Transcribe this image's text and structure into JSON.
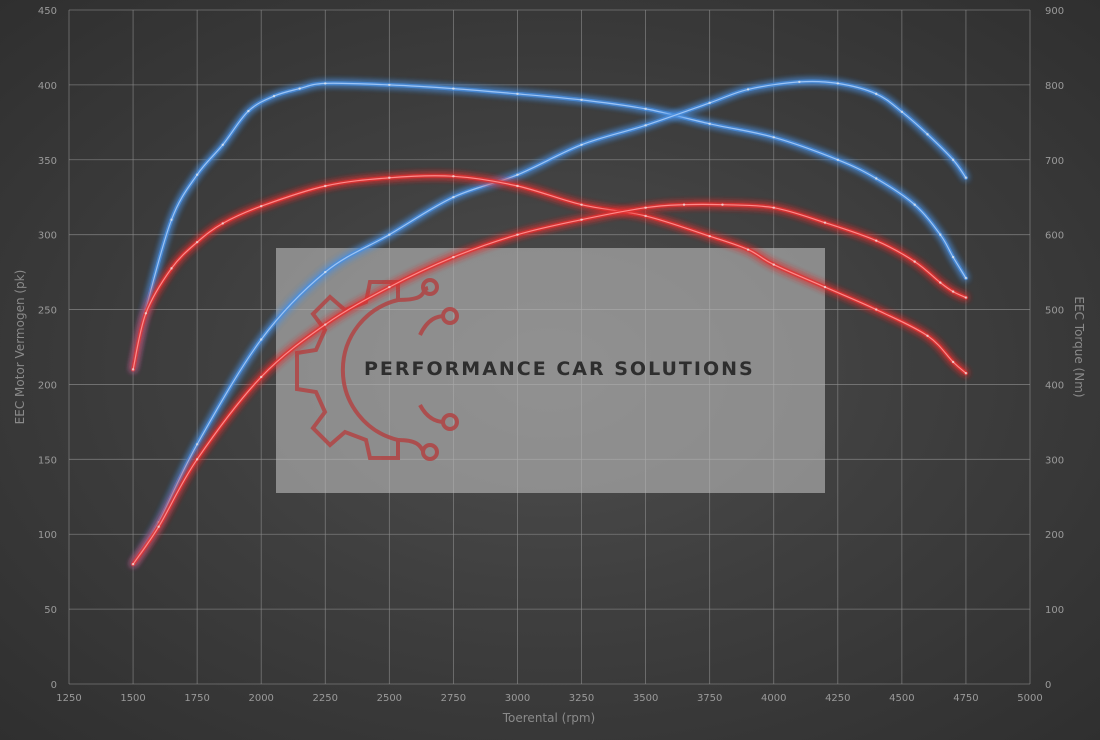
{
  "chart_data": {
    "type": "line",
    "xlabel": "Toerental (rpm)",
    "ylabel_left": "EEC Motor Vermogen (pk)",
    "ylabel_right": "EEC Torque (Nm)",
    "xlim": [
      1250,
      5000
    ],
    "ylim_left": [
      0,
      450
    ],
    "ylim_right": [
      0,
      900
    ],
    "x_ticks": [
      1250,
      1500,
      1750,
      2000,
      2250,
      2500,
      2750,
      3000,
      3250,
      3500,
      3750,
      4000,
      4250,
      4500,
      4750,
      5000
    ],
    "y_left_ticks": [
      0,
      50,
      100,
      150,
      200,
      250,
      300,
      350,
      400,
      450
    ],
    "y_right_ticks": [
      0,
      100,
      200,
      300,
      400,
      500,
      600,
      700,
      800,
      900
    ],
    "grid": true,
    "legend": "none",
    "series": [
      {
        "axis": "right",
        "color": "#4a8fe0",
        "x": [
          1500,
          1550,
          1650,
          1750,
          1850,
          1950,
          2050,
          2150,
          2250,
          2500,
          2750,
          3000,
          3250,
          3500,
          3750,
          4000,
          4250,
          4400,
          4550,
          4650,
          4700,
          4750
        ],
        "y": [
          420,
          500,
          620,
          680,
          720,
          765,
          785,
          795,
          802,
          800,
          795,
          788,
          780,
          768,
          748,
          730,
          700,
          675,
          640,
          600,
          570,
          542
        ]
      },
      {
        "axis": "left",
        "color": "#4a8fe0",
        "x": [
          1500,
          1600,
          1750,
          2000,
          2250,
          2500,
          2750,
          3000,
          3250,
          3500,
          3750,
          3900,
          4100,
          4250,
          4400,
          4500,
          4600,
          4700,
          4750
        ],
        "y": [
          80,
          108,
          160,
          230,
          275,
          300,
          325,
          340,
          360,
          373,
          388,
          397,
          402,
          401,
          394,
          382,
          367,
          350,
          338
        ]
      },
      {
        "axis": "right",
        "color": "#e23030",
        "x": [
          1500,
          1550,
          1650,
          1750,
          1850,
          2000,
          2250,
          2500,
          2750,
          3000,
          3250,
          3500,
          3750,
          3900,
          4000,
          4200,
          4400,
          4600,
          4700,
          4750
        ],
        "y": [
          420,
          495,
          555,
          590,
          615,
          638,
          665,
          676,
          678,
          665,
          640,
          625,
          598,
          580,
          560,
          530,
          500,
          465,
          430,
          415
        ]
      },
      {
        "axis": "left",
        "color": "#e23030",
        "x": [
          1500,
          1600,
          1750,
          2000,
          2250,
          2500,
          2750,
          3000,
          3250,
          3500,
          3650,
          3800,
          4000,
          4200,
          4400,
          4550,
          4650,
          4700,
          4750
        ],
        "y": [
          80,
          105,
          150,
          205,
          240,
          265,
          285,
          300,
          310,
          318,
          320,
          320,
          318,
          308,
          296,
          282,
          268,
          262,
          258
        ]
      }
    ],
    "watermark_text": "PERFORMANCE CAR SOLUTIONS"
  }
}
